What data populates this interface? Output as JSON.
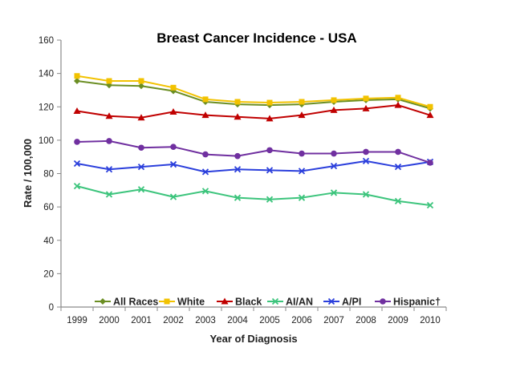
{
  "chart_data": {
    "type": "line",
    "title": "Breast Cancer Incidence - USA",
    "xlabel": "Year of Diagnosis",
    "ylabel": "Rate / 100,000",
    "ylim": [
      0,
      160
    ],
    "yticks": [
      0,
      20,
      40,
      60,
      80,
      100,
      120,
      140,
      160
    ],
    "categories": [
      "1999",
      "2000",
      "2001",
      "2002",
      "2003",
      "2004",
      "2005",
      "2006",
      "2007",
      "2008",
      "2009",
      "2010"
    ],
    "legend_position": "bottom",
    "series": [
      {
        "name": "All Races",
        "color": "#6b8e23",
        "marker": "diamond",
        "values": [
          135.5,
          133,
          132.5,
          129.5,
          123,
          121.5,
          121,
          121.5,
          123,
          124,
          124.5,
          119
        ]
      },
      {
        "name": "White",
        "color": "#f2c200",
        "marker": "square",
        "values": [
          138.5,
          135.5,
          135.5,
          131.5,
          124.5,
          123,
          122.5,
          123,
          124,
          125,
          125.5,
          120
        ]
      },
      {
        "name": "Black",
        "color": "#c00000",
        "marker": "triangle",
        "values": [
          117.5,
          114.5,
          113.5,
          117,
          115,
          114,
          113,
          115,
          118,
          119,
          121,
          115
        ]
      },
      {
        "name": "AI/AN",
        "color": "#3cc47c",
        "marker": "x",
        "values": [
          72.5,
          67.5,
          70.5,
          66,
          69.5,
          65.5,
          64.5,
          65.5,
          68.5,
          67.5,
          63.5,
          61
        ]
      },
      {
        "name": "A/PI",
        "color": "#2b3fdc",
        "marker": "x",
        "values": [
          86,
          82.5,
          84,
          85.5,
          81,
          82.5,
          82,
          81.5,
          84.5,
          87.5,
          84,
          87
        ]
      },
      {
        "name": "Hispanic†",
        "color": "#7030a0",
        "marker": "circle",
        "values": [
          99,
          99.5,
          95.5,
          96,
          91.5,
          90.5,
          94,
          92,
          92,
          93,
          93,
          86.5
        ]
      }
    ]
  }
}
